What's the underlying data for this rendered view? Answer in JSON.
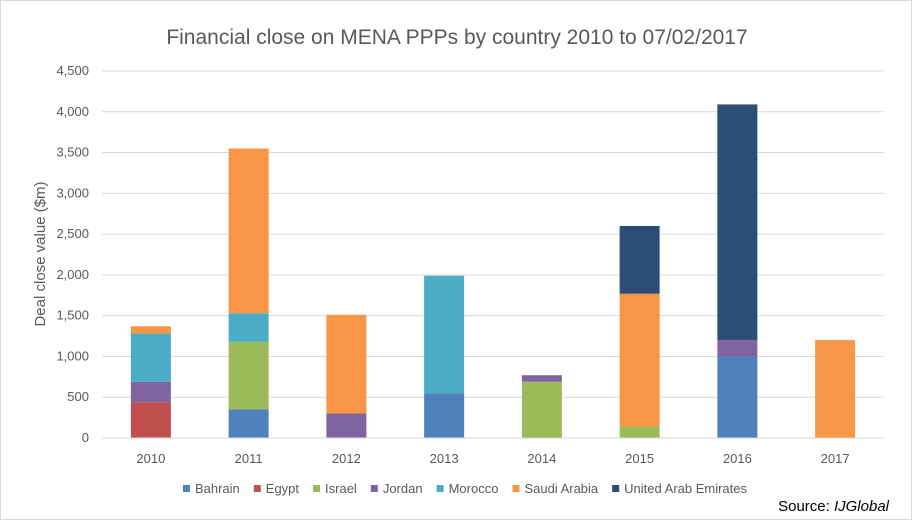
{
  "chart_data": {
    "type": "bar",
    "stacked": true,
    "title": "Financial close on MENA PPPs by country 2010 to 07/02/2017",
    "xlabel": "",
    "ylabel": "Deal close value ($m)",
    "ylim": [
      0,
      4500
    ],
    "ytick_labels": [
      "0",
      "500",
      "1,000",
      "1,500",
      "2,000",
      "2,500",
      "3,000",
      "3,500",
      "4,000",
      "4,500"
    ],
    "grid": true,
    "legend_position": "bottom",
    "categories": [
      "2010",
      "2011",
      "2012",
      "2013",
      "2014",
      "2015",
      "2016",
      "2017"
    ],
    "series": [
      {
        "name": "Bahrain",
        "color": "#4f81bd",
        "values": [
          0,
          350,
          0,
          550,
          0,
          0,
          1000,
          0
        ]
      },
      {
        "name": "Egypt",
        "color": "#c0504d",
        "values": [
          440,
          0,
          0,
          0,
          0,
          0,
          0,
          0
        ]
      },
      {
        "name": "Israel",
        "color": "#9bbb59",
        "values": [
          0,
          830,
          0,
          0,
          690,
          140,
          0,
          0
        ]
      },
      {
        "name": "Jordan",
        "color": "#8064a2",
        "values": [
          250,
          0,
          300,
          0,
          80,
          0,
          200,
          0
        ]
      },
      {
        "name": "Morocco",
        "color": "#4bacc6",
        "values": [
          590,
          350,
          0,
          1440,
          0,
          0,
          0,
          0
        ]
      },
      {
        "name": "Saudi Arabia",
        "color": "#f79646",
        "values": [
          90,
          2020,
          1210,
          0,
          0,
          1630,
          0,
          1200
        ]
      },
      {
        "name": "United Arab Emirates",
        "color": "#2c4d75",
        "values": [
          0,
          0,
          0,
          0,
          0,
          830,
          2890,
          0
        ]
      }
    ]
  },
  "source": {
    "prefix": "Source: ",
    "name": "IJGlobal"
  }
}
